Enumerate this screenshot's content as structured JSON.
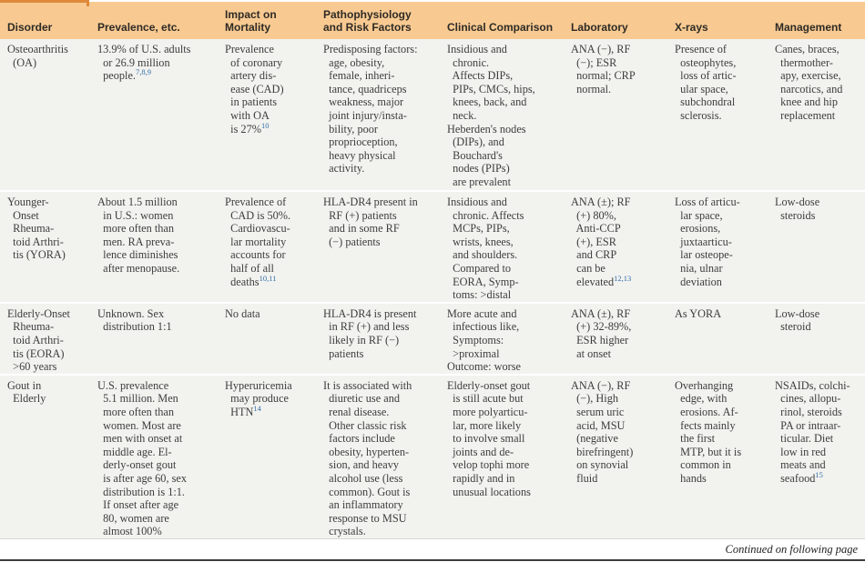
{
  "page": {
    "footer_note": "Continued on following page"
  },
  "colors": {
    "header_bg": "#F8CA92",
    "header_accent": "#DE8A3A",
    "body_bg": "#F2F2EF",
    "reference_blue": "#336FA8",
    "body_text": "#3d3d3d"
  },
  "table": {
    "columns": [
      "Disorder",
      "Prevalence, etc.",
      "Impact on\nMortality",
      "Pathophysiology\nand Risk Factors",
      "Clinical Comparison",
      "Laboratory",
      "X-rays",
      "Management"
    ],
    "rows": [
      {
        "disorder": "Osteoarthritis\n  (OA)",
        "prevalence": "13.9% of U.S. adults\n  or 26.9 million\n  people.^{7,8,9}",
        "mortality": "Prevalence\n  of coronary\n  artery dis-\n  ease (CAD)\n  in patients\n  with OA\n  is 27%^{10}",
        "pathophysiology": "Predisposing factors:\n  age, obesity,\n  female, inheri-\n  tance, quadriceps\n  weakness, major\n  joint injury/insta-\n  bility, poor\n  proprioception,\n  heavy physical\n  activity.",
        "clinical": "Insidious and\n  chronic.\n  Affects DIPs,\n  PIPs, CMCs, hips,\n  knees, back, and\n  neck.\nHeberden's nodes\n  (DIPs), and\n  Bouchard's\n  nodes (PIPs)\n  are prevalent",
        "laboratory": "ANA (−), RF\n  (−); ESR\n  normal; CRP\n  normal.",
        "xrays": "Presence of\n  osteophytes,\n  loss of artic-\n  ular space,\n  subchondral\n  sclerosis.",
        "management": "Canes, braces,\n  thermother-\n  apy, exercise,\n  narcotics, and\n  knee and hip\n  replacement"
      },
      {
        "disorder": "Younger-\n  Onset\n  Rheuma-\n  toid Arthri-\n  tis (YORA)",
        "prevalence": "About 1.5 million\n  in U.S.: women\n  more often than\n  men. RA preva-\n  lence diminishes\n  after menopause.",
        "mortality": "Prevalence of\n  CAD is 50%.\n  Cardiovascu-\n  lar mortality\n  accounts for\n  half of all\n  deaths^{10,11}",
        "pathophysiology": "HLA-DR4 present in\n  RF (+) patients\n  and in some RF\n  (−) patients",
        "clinical": "Insidious and\n  chronic. Affects\n  MCPs, PIPs,\n  wrists, knees,\n  and shoulders.\n  Compared to\n  EORA, Symp-\n  toms: >distal",
        "laboratory": "ANA (±); RF\n  (+) 80%,\n  Anti-CCP\n  (+), ESR\n  and CRP\n  can be\n  elevated^{12,13}",
        "xrays": "Loss of articu-\n  lar space,\n  erosions,\n  juxtaarticu-\n  lar osteope-\n  nia, ulnar\n  deviation",
        "management": "Low-dose\n  steroids"
      },
      {
        "disorder": "Elderly-Onset\n  Rheuma-\n  toid Arthri-\n  tis (EORA)\n  >60 years",
        "prevalence": "Unknown. Sex\n  distribution 1:1",
        "mortality": "No data",
        "pathophysiology": "HLA-DR4 is present\n  in RF (+) and less\n  likely in RF (−)\n  patients",
        "clinical": "More acute and\n  infectious like,\n  Symptoms:\n  >proximal\nOutcome: worse",
        "laboratory": "ANA (±), RF\n  (+) 32-89%,\n  ESR higher\n  at onset",
        "xrays": "As YORA",
        "management": "Low-dose\n  steroid"
      },
      {
        "disorder": "Gout in\n  Elderly",
        "prevalence": "U.S. prevalence\n  5.1 million. Men\n  more often than\n  women. Most are\n  men with onset at\n  middle age. El-\n  derly-onset gout\n  is after age 60, sex\n  distribution is 1:1.\n  If onset after age\n  80, women are\n  almost 100%",
        "mortality": "Hyperuricemia\n  may produce\n  HTN^{14}",
        "pathophysiology": "It is associated with\n  diuretic use and\n  renal disease.\n  Other classic risk\n  factors include\n  obesity, hyperten-\n  sion, and heavy\n  alcohol use (less\n  common). Gout is\n  an inflammatory\n  response to MSU\n  crystals.",
        "clinical": "Elderly-onset gout\n  is still acute but\n  more polyarticu-\n  lar, more likely\n  to involve small\n  joints and de-\n  velop tophi more\n  rapidly and in\n  unusual locations",
        "laboratory": "ANA (−), RF\n  (−), High\n  serum uric\n  acid, MSU\n  (negative\n  birefringent)\n  on synovial\n  fluid",
        "xrays": "Overhanging\n  edge, with\n  erosions. Af-\n  fects mainly\n  the first\n  MTP, but it is\n  common in\n  hands",
        "management": "NSAIDs, colchi-\n  cines, allopu-\n  rinol, steroids\n  PA or intraar-\n  ticular. Diet\n  low in red\n  meats and\n  seafood^{15}"
      }
    ]
  }
}
